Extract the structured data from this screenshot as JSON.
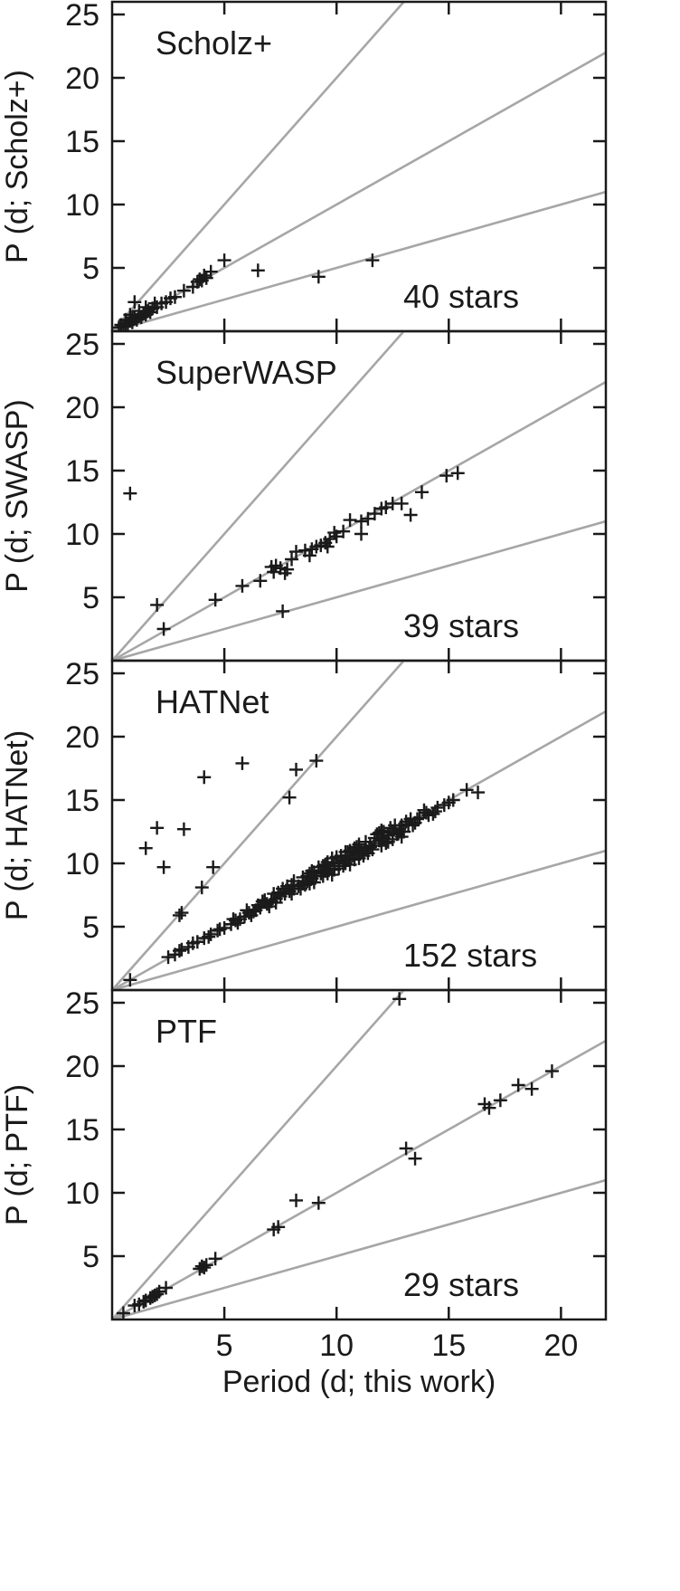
{
  "chart_data": {
    "type": "scatter",
    "xlabel": "Period (d; this work)",
    "xlim": [
      0,
      22
    ],
    "xticks": [
      5,
      10,
      15,
      20
    ],
    "ylim": [
      0,
      26
    ],
    "yticks": [
      5,
      10,
      15,
      20,
      25
    ],
    "reference_lines": [
      {
        "name": "P = 2 x",
        "slope": 2
      },
      {
        "name": "P = x",
        "slope": 1
      },
      {
        "name": "P = 0.5 x",
        "slope": 0.5
      }
    ],
    "colors": {
      "points": "#1a1a1a",
      "lines": "#a6a6a6",
      "axes": "#1a1a1a"
    },
    "panels": [
      {
        "title": "Scholz+",
        "ylabel": "P (d; Scholz+)",
        "count_label": "40 stars",
        "points": [
          [
            0.3,
            0.3
          ],
          [
            0.4,
            0.5
          ],
          [
            0.5,
            0.4
          ],
          [
            0.6,
            0.6
          ],
          [
            0.7,
            0.5
          ],
          [
            0.8,
            0.8
          ],
          [
            0.9,
            0.7
          ],
          [
            1.0,
            1.0
          ],
          [
            1.1,
            0.9
          ],
          [
            1.2,
            1.2
          ],
          [
            1.3,
            1.1
          ],
          [
            1.4,
            1.4
          ],
          [
            1.5,
            1.3
          ],
          [
            1.6,
            1.6
          ],
          [
            1.7,
            1.5
          ],
          [
            1.8,
            1.8
          ],
          [
            2.0,
            1.9
          ],
          [
            2.2,
            2.2
          ],
          [
            2.4,
            2.3
          ],
          [
            1.0,
            2.3
          ],
          [
            0.6,
            0.9
          ],
          [
            0.8,
            1.3
          ],
          [
            1.2,
            1.6
          ],
          [
            1.5,
            1.9
          ],
          [
            1.9,
            2.2
          ],
          [
            2.6,
            2.6
          ],
          [
            2.8,
            2.7
          ],
          [
            3.2,
            3.2
          ],
          [
            3.6,
            3.5
          ],
          [
            3.8,
            3.9
          ],
          [
            3.9,
            4.1
          ],
          [
            4.0,
            4.0
          ],
          [
            4.1,
            4.4
          ],
          [
            4.2,
            4.2
          ],
          [
            4.4,
            4.7
          ],
          [
            5.0,
            5.6
          ],
          [
            6.5,
            4.8
          ],
          [
            9.2,
            4.3
          ],
          [
            11.6,
            5.6
          ],
          [
            0.9,
            1.1
          ]
        ]
      },
      {
        "title": "SuperWASP",
        "ylabel": "P (d; SWASP)",
        "count_label": "39 stars",
        "points": [
          [
            0.8,
            13.2
          ],
          [
            2.0,
            4.4
          ],
          [
            2.3,
            2.5
          ],
          [
            4.6,
            4.8
          ],
          [
            5.8,
            5.9
          ],
          [
            6.6,
            6.3
          ],
          [
            7.2,
            7.0
          ],
          [
            7.3,
            7.5
          ],
          [
            7.5,
            7.3
          ],
          [
            7.7,
            6.9
          ],
          [
            7.8,
            7.2
          ],
          [
            7.6,
            3.9
          ],
          [
            8.2,
            8.6
          ],
          [
            8.6,
            8.7
          ],
          [
            8.9,
            8.8
          ],
          [
            9.1,
            9.0
          ],
          [
            9.3,
            9.1
          ],
          [
            9.5,
            9.3
          ],
          [
            9.7,
            9.6
          ],
          [
            10.0,
            9.8
          ],
          [
            10.3,
            10.2
          ],
          [
            10.6,
            11.1
          ],
          [
            11.1,
            11.0
          ],
          [
            11.4,
            11.2
          ],
          [
            11.7,
            11.6
          ],
          [
            12.0,
            12.0
          ],
          [
            12.5,
            12.4
          ],
          [
            12.9,
            12.4
          ],
          [
            13.3,
            11.5
          ],
          [
            13.8,
            13.3
          ],
          [
            14.9,
            14.6
          ],
          [
            15.4,
            14.8
          ],
          [
            11.1,
            10.0
          ],
          [
            9.6,
            9.0
          ],
          [
            8.8,
            8.3
          ],
          [
            9.9,
            10.1
          ],
          [
            12.2,
            12.1
          ],
          [
            8.0,
            8.0
          ],
          [
            7.1,
            7.4
          ]
        ]
      },
      {
        "title": "HATNet",
        "ylabel": "P (d; HATNet)",
        "count_label": "152 stars",
        "points": [
          [
            0.8,
            0.8
          ],
          [
            2.5,
            2.6
          ],
          [
            2.8,
            2.8
          ],
          [
            3.0,
            3.1
          ],
          [
            3.1,
            3.2
          ],
          [
            3.4,
            3.4
          ],
          [
            3.8,
            3.8
          ],
          [
            4.1,
            4.1
          ],
          [
            4.4,
            4.4
          ],
          [
            4.8,
            4.8
          ],
          [
            5.0,
            4.9
          ],
          [
            5.5,
            5.5
          ],
          [
            5.7,
            5.6
          ],
          [
            5.9,
            5.8
          ],
          [
            6.1,
            6.1
          ],
          [
            6.3,
            6.2
          ],
          [
            6.6,
            6.5
          ],
          [
            6.9,
            6.8
          ],
          [
            7.1,
            7.0
          ],
          [
            7.3,
            7.2
          ],
          [
            7.5,
            7.4
          ],
          [
            7.7,
            7.6
          ],
          [
            7.9,
            7.8
          ],
          [
            8.1,
            8.0
          ],
          [
            8.3,
            8.2
          ],
          [
            8.5,
            8.4
          ],
          [
            8.7,
            8.6
          ],
          [
            8.9,
            8.8
          ],
          [
            9.1,
            9.0
          ],
          [
            9.3,
            9.2
          ],
          [
            9.5,
            9.4
          ],
          [
            9.7,
            9.6
          ],
          [
            9.9,
            9.8
          ],
          [
            10.1,
            10.0
          ],
          [
            10.3,
            10.2
          ],
          [
            10.5,
            10.4
          ],
          [
            10.7,
            10.6
          ],
          [
            10.9,
            10.8
          ],
          [
            11.1,
            11.0
          ],
          [
            11.3,
            11.2
          ],
          [
            11.5,
            11.4
          ],
          [
            11.7,
            11.6
          ],
          [
            11.9,
            11.8
          ],
          [
            12.1,
            12.0
          ],
          [
            12.3,
            12.2
          ],
          [
            12.5,
            12.4
          ],
          [
            12.8,
            12.7
          ],
          [
            13.2,
            13.1
          ],
          [
            13.6,
            13.5
          ],
          [
            14.0,
            14.0
          ],
          [
            14.5,
            14.4
          ],
          [
            15.0,
            14.8
          ],
          [
            15.8,
            15.8
          ],
          [
            16.3,
            15.6
          ],
          [
            8.0,
            7.6
          ],
          [
            8.5,
            8.9
          ],
          [
            9.0,
            8.5
          ],
          [
            9.2,
            9.7
          ],
          [
            9.8,
            9.1
          ],
          [
            10.2,
            10.6
          ],
          [
            10.6,
            9.9
          ],
          [
            11.0,
            11.5
          ],
          [
            11.4,
            10.8
          ],
          [
            11.8,
            12.3
          ],
          [
            12.2,
            11.6
          ],
          [
            12.6,
            13.0
          ],
          [
            12.0,
            12.6
          ],
          [
            12.9,
            12.1
          ],
          [
            13.4,
            13.0
          ],
          [
            13.9,
            14.2
          ],
          [
            14.3,
            13.9
          ],
          [
            7.6,
            8.0
          ],
          [
            8.8,
            9.2
          ],
          [
            9.6,
            10.1
          ],
          [
            10.4,
            10.9
          ],
          [
            10.8,
            10.3
          ],
          [
            3.0,
            5.9
          ],
          [
            3.1,
            6.1
          ],
          [
            4.0,
            8.1
          ],
          [
            4.5,
            9.7
          ],
          [
            7.9,
            15.2
          ],
          [
            8.2,
            17.4
          ],
          [
            9.1,
            18.1
          ],
          [
            4.1,
            16.8
          ],
          [
            5.8,
            17.9
          ],
          [
            1.5,
            11.2
          ],
          [
            2.0,
            12.8
          ],
          [
            2.3,
            9.7
          ],
          [
            3.2,
            12.7
          ],
          [
            5.3,
            5.2
          ],
          [
            6.0,
            6.3
          ],
          [
            6.8,
            7.1
          ],
          [
            7.4,
            7.7
          ],
          [
            8.6,
            8.3
          ],
          [
            9.4,
            9.0
          ],
          [
            10.0,
            10.5
          ],
          [
            10.9,
            11.3
          ],
          [
            11.6,
            11.1
          ],
          [
            12.4,
            12.8
          ],
          [
            13.0,
            12.5
          ],
          [
            13.7,
            13.6
          ],
          [
            14.8,
            14.6
          ],
          [
            4.7,
            4.7
          ],
          [
            5.4,
            5.6
          ],
          [
            6.4,
            6.3
          ],
          [
            7.0,
            6.6
          ],
          [
            7.8,
            8.2
          ],
          [
            8.4,
            8.0
          ],
          [
            9.0,
            9.3
          ],
          [
            9.9,
            9.5
          ],
          [
            10.6,
            11.0
          ],
          [
            11.2,
            10.6
          ],
          [
            12.0,
            11.4
          ],
          [
            12.7,
            12.3
          ],
          [
            13.3,
            13.5
          ],
          [
            14.1,
            13.8
          ],
          [
            3.6,
            3.7
          ],
          [
            4.3,
            4.2
          ],
          [
            6.2,
            5.9
          ],
          [
            6.7,
            7.0
          ],
          [
            7.2,
            7.6
          ],
          [
            8.0,
            8.3
          ],
          [
            8.7,
            9.0
          ],
          [
            9.5,
            9.9
          ],
          [
            10.3,
            9.8
          ],
          [
            11.0,
            10.4
          ],
          [
            11.9,
            12.4
          ],
          [
            12.5,
            11.9
          ],
          [
            13.1,
            13.3
          ],
          [
            15.2,
            15.0
          ],
          [
            5.6,
            5.3
          ],
          [
            6.5,
            6.7
          ],
          [
            7.3,
            6.9
          ],
          [
            8.1,
            8.6
          ],
          [
            8.8,
            8.4
          ],
          [
            9.6,
            9.2
          ],
          [
            10.4,
            10.0
          ],
          [
            11.3,
            11.7
          ],
          [
            12.1,
            12.5
          ],
          [
            12.9,
            13.0
          ],
          [
            13.5,
            13.2
          ],
          [
            14.4,
            14.1
          ],
          [
            9.4,
            9.8
          ],
          [
            10.1,
            9.6
          ],
          [
            10.8,
            11.2
          ],
          [
            11.5,
            11.3
          ],
          [
            12.3,
            11.7
          ],
          [
            9.8,
            10.4
          ],
          [
            8.9,
            9.4
          ],
          [
            10.5,
            10.9
          ],
          [
            11.7,
            12.0
          ],
          [
            12.8,
            12.5
          ]
        ]
      },
      {
        "title": "PTF",
        "ylabel": "P (d; PTF)",
        "count_label": "29 stars",
        "points": [
          [
            0.5,
            0.5
          ],
          [
            1.0,
            1.1
          ],
          [
            1.2,
            1.2
          ],
          [
            1.4,
            1.4
          ],
          [
            1.5,
            1.5
          ],
          [
            1.7,
            1.7
          ],
          [
            1.9,
            1.9
          ],
          [
            2.1,
            2.2
          ],
          [
            2.4,
            2.5
          ],
          [
            3.9,
            4.0
          ],
          [
            4.1,
            4.1
          ],
          [
            4.2,
            4.3
          ],
          [
            4.6,
            4.8
          ],
          [
            7.2,
            7.1
          ],
          [
            7.4,
            7.3
          ],
          [
            8.2,
            9.4
          ],
          [
            9.2,
            9.2
          ],
          [
            12.8,
            25.3
          ],
          [
            13.1,
            13.5
          ],
          [
            13.5,
            12.7
          ],
          [
            16.6,
            17.0
          ],
          [
            16.8,
            16.7
          ],
          [
            17.3,
            17.3
          ],
          [
            18.1,
            18.5
          ],
          [
            18.7,
            18.2
          ],
          [
            19.6,
            19.6
          ],
          [
            1.8,
            1.8
          ],
          [
            2.0,
            2.0
          ],
          [
            4.0,
            4.2
          ]
        ]
      }
    ]
  }
}
